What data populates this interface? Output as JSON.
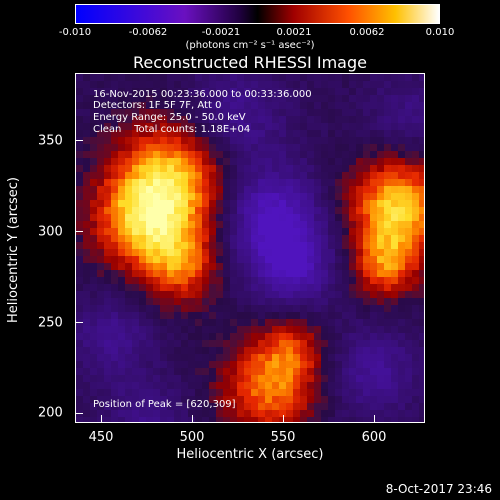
{
  "colorbar": {
    "ticks": [
      "-0.010",
      "-0.0062",
      "-0.0021",
      "0.0021",
      "0.0062",
      "0.010"
    ],
    "units": "(photons cm⁻² s⁻¹ asec⁻²)",
    "colors": [
      "#0000ff",
      "#5a00c8",
      "#000000",
      "#b40000",
      "#ff5a00",
      "#ffc800",
      "#ffffff"
    ]
  },
  "title": "Reconstructed RHESSI Image",
  "info": {
    "time": "16-Nov-2015 00:23:36.000 to 00:33:36.000",
    "detectors": "Detectors: 1F 5F 7F, Att 0",
    "energy": "Energy Range: 25.0 - 50.0 keV",
    "clean": "Clean    Total counts: 1.18E+04",
    "peak": "Position of Peak = [620,309]"
  },
  "axes": {
    "ylabel": "Heliocentric Y (arcsec)",
    "xlabel": "Heliocentric X (arcsec)",
    "yticks": [
      "350",
      "300",
      "250",
      "200"
    ],
    "xticks": [
      "450",
      "500",
      "550",
      "600"
    ]
  },
  "timestamp": "8-Oct-2017 23:46"
}
